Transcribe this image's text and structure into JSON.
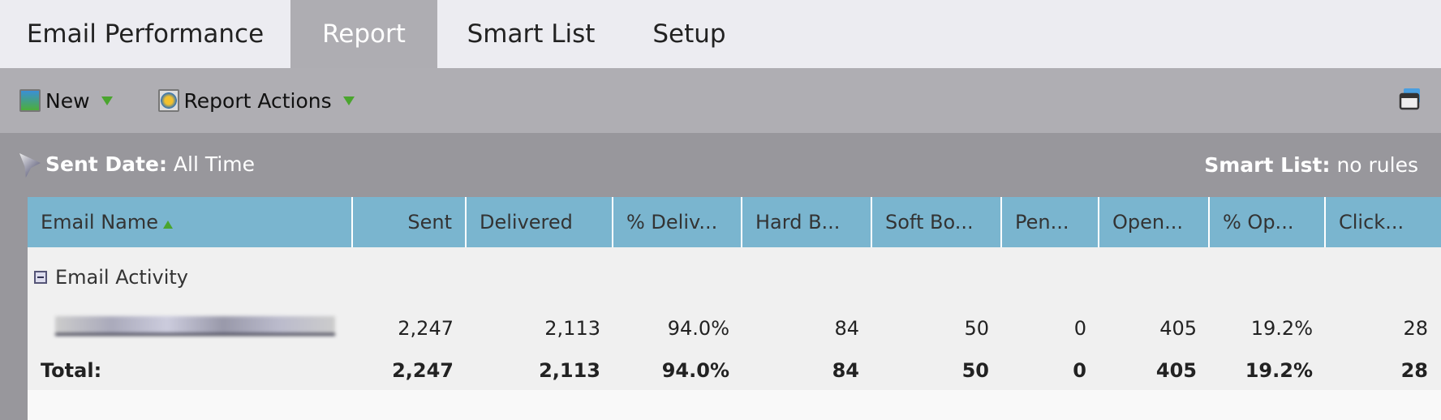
{
  "tabs": [
    {
      "label": "Email Performance",
      "active": false
    },
    {
      "label": "Report",
      "active": true
    },
    {
      "label": "Smart List",
      "active": false
    },
    {
      "label": "Setup",
      "active": false
    }
  ],
  "toolbar": {
    "new_label": "New",
    "actions_label": "Report Actions"
  },
  "filter": {
    "sent_date_label": "Sent Date:",
    "sent_date_value": "All Time",
    "smart_list_label": "Smart List:",
    "smart_list_value": "no rules"
  },
  "table": {
    "columns": [
      "Email Name",
      "Sent",
      "Delivered",
      "% Deliv...",
      "Hard B...",
      "Soft Bo...",
      "Pen...",
      "Open...",
      "% Op...",
      "Click..."
    ],
    "group": "Email Activity",
    "row": [
      "2,247",
      "2,113",
      "94.0%",
      "84",
      "50",
      "0",
      "405",
      "19.2%",
      "28"
    ],
    "total_label": "Total:",
    "total": [
      "2,247",
      "2,113",
      "94.0%",
      "84",
      "50",
      "0",
      "405",
      "19.2%",
      "28"
    ]
  },
  "colors": {
    "header": "#7ab5cf",
    "accent": "#4aa52e"
  }
}
